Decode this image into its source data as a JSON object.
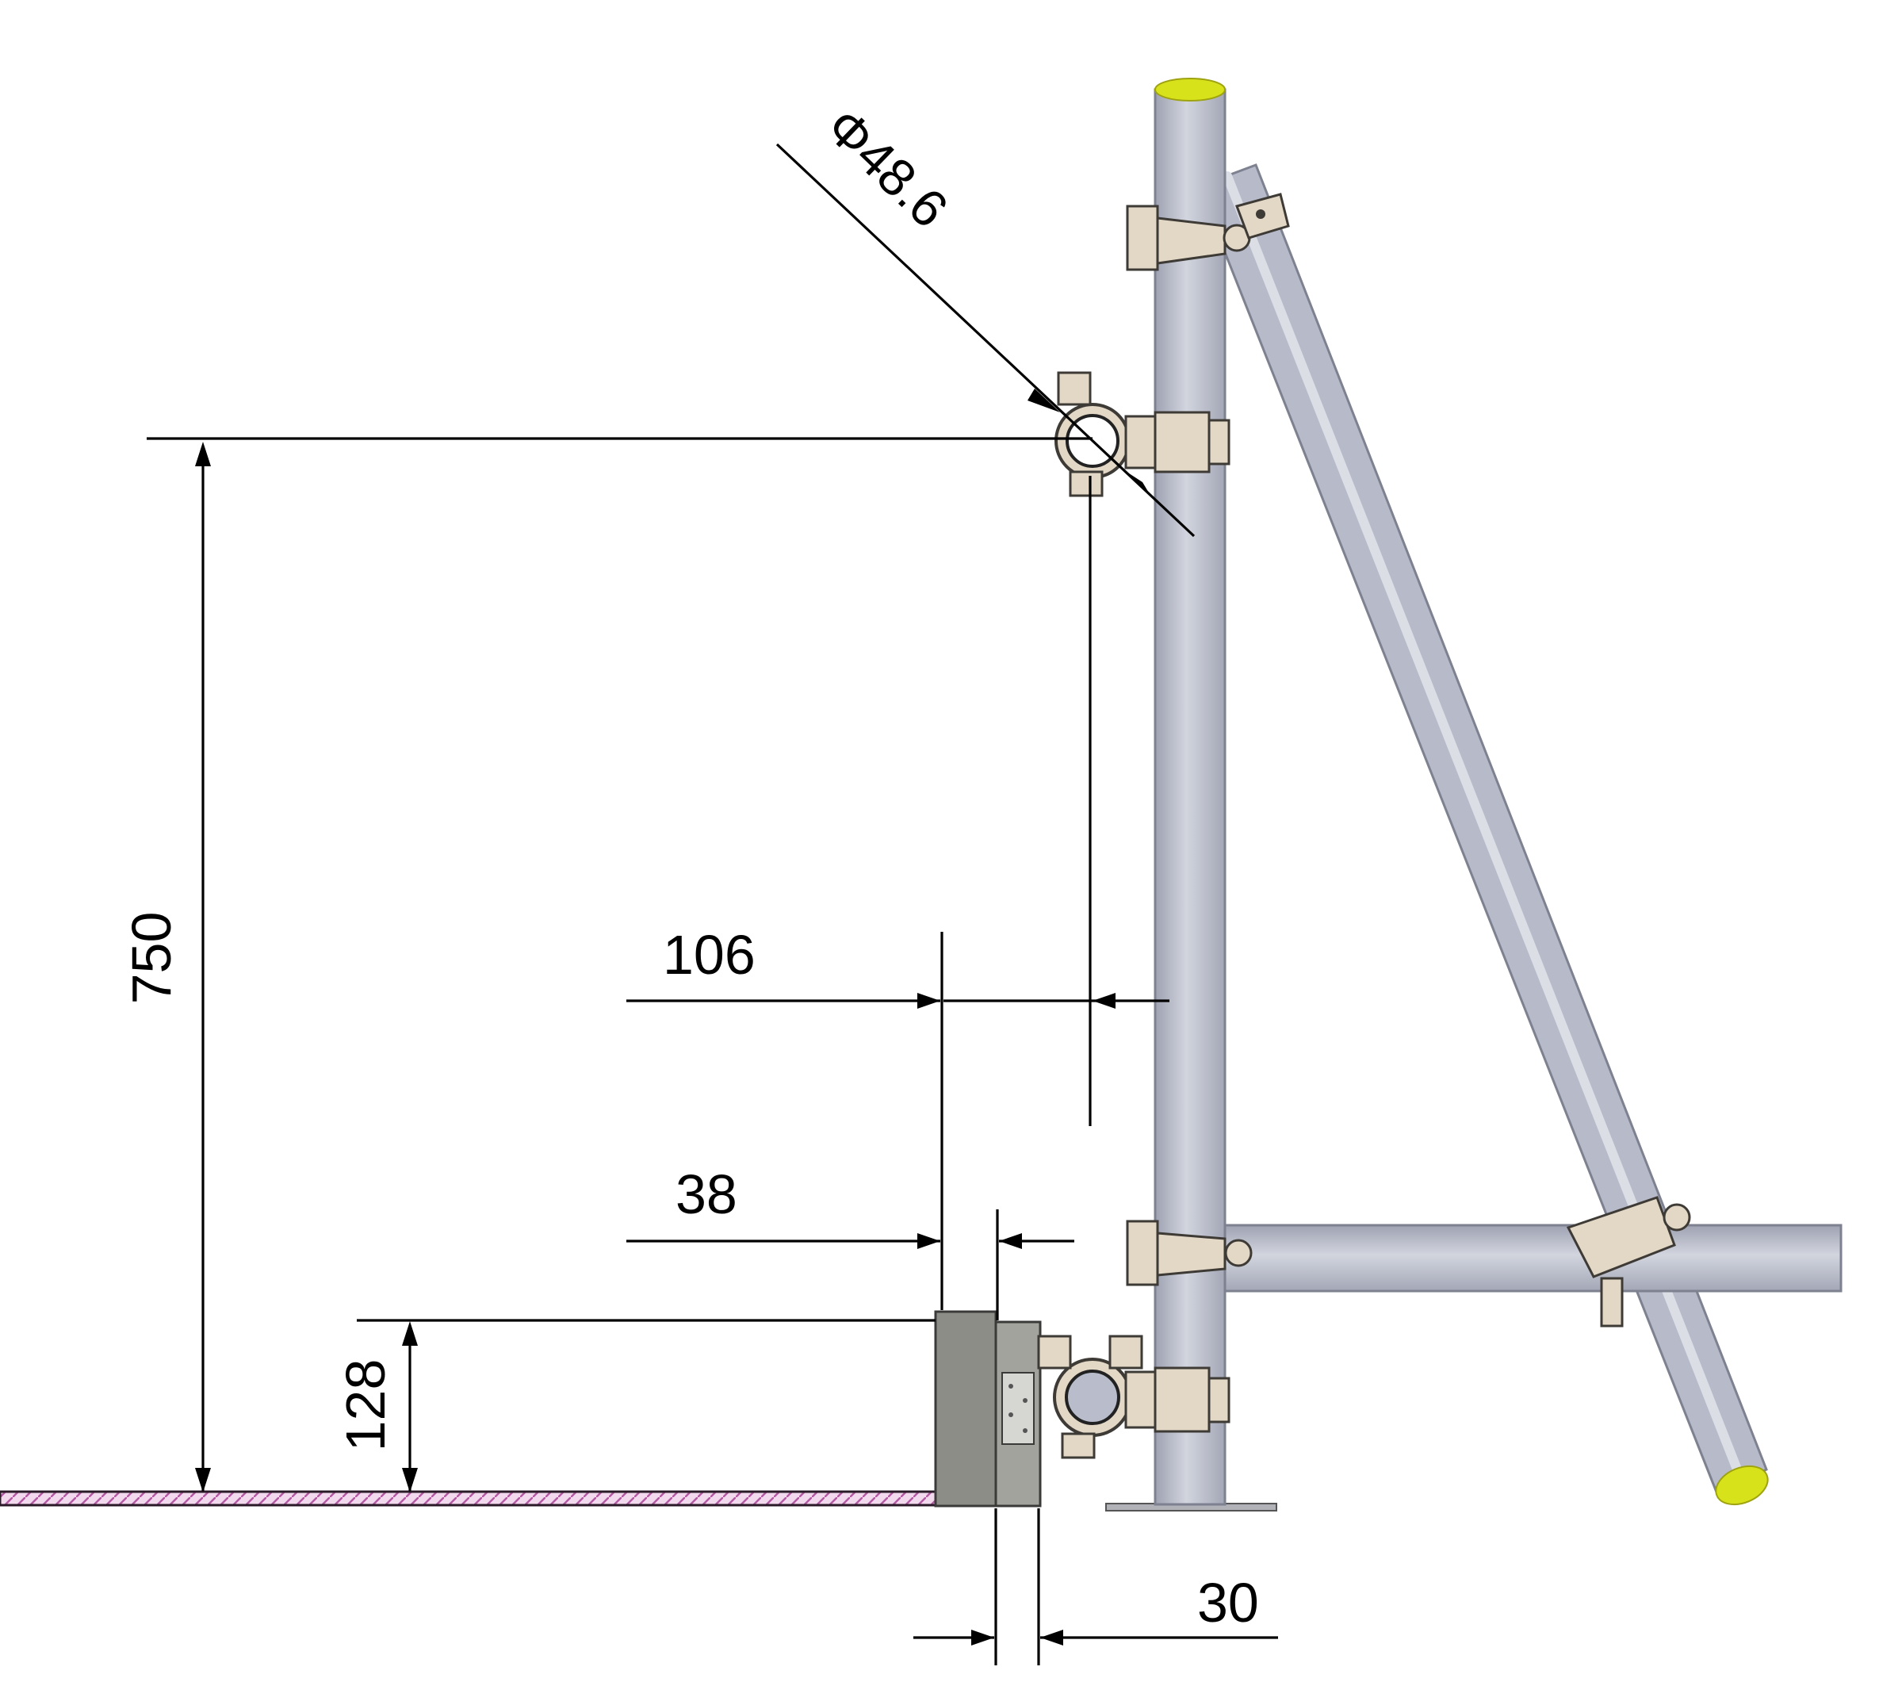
{
  "dimensions": {
    "pipe_diameter": "Φ48.6",
    "height": "750",
    "offset_pipe": "106",
    "offset_plate": "38",
    "block_height": "128",
    "gap": "30"
  },
  "colors": {
    "pipe": "#b8bccb",
    "pipe_edge": "#7d8190",
    "end_cap": "#d8e21a",
    "clamp": "#e3d8c6",
    "clamp_edge": "#3e3a35",
    "block": "#8d8d88",
    "plate": "#a3a39e",
    "floor_hatch": "#d58cc8",
    "dimension_line": "#000000"
  }
}
